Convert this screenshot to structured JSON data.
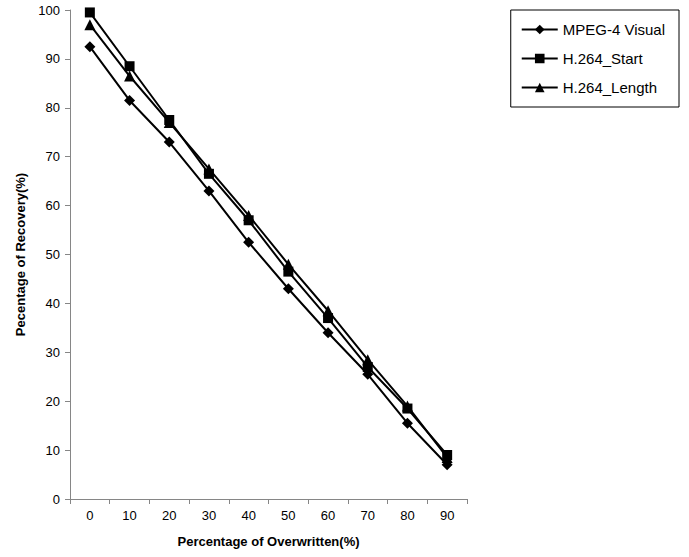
{
  "chart_data": {
    "type": "line",
    "x_label": "Percentage of Overwritten(%)",
    "y_label": "Pecentage of Recovery(%)",
    "categories": [
      0,
      10,
      20,
      30,
      40,
      50,
      60,
      70,
      80,
      90
    ],
    "series": [
      {
        "name": "MPEG-4 Visual",
        "color": "#000000",
        "marker": "diamond",
        "line_style": "solid",
        "values": [
          92.5,
          81.5,
          73,
          63,
          52.5,
          43,
          34,
          25.5,
          15.5,
          7
        ]
      },
      {
        "name": "H.264_Start",
        "color": "#000000",
        "marker": "square",
        "line_style": "solid",
        "values": [
          99.5,
          88.5,
          77.5,
          66.5,
          57,
          46.5,
          37,
          27,
          18.5,
          9
        ]
      },
      {
        "name": "H.264_Length",
        "color": "#000000",
        "marker": "triangle",
        "line_style": "solid",
        "values": [
          97,
          86.5,
          77,
          67.5,
          58,
          48,
          38.5,
          28.5,
          19,
          8.5
        ]
      }
    ],
    "ylim": [
      0,
      100
    ],
    "yticks": [
      0,
      10,
      20,
      30,
      40,
      50,
      60,
      70,
      80,
      90,
      100
    ],
    "grid": false,
    "legend": "upper right"
  }
}
